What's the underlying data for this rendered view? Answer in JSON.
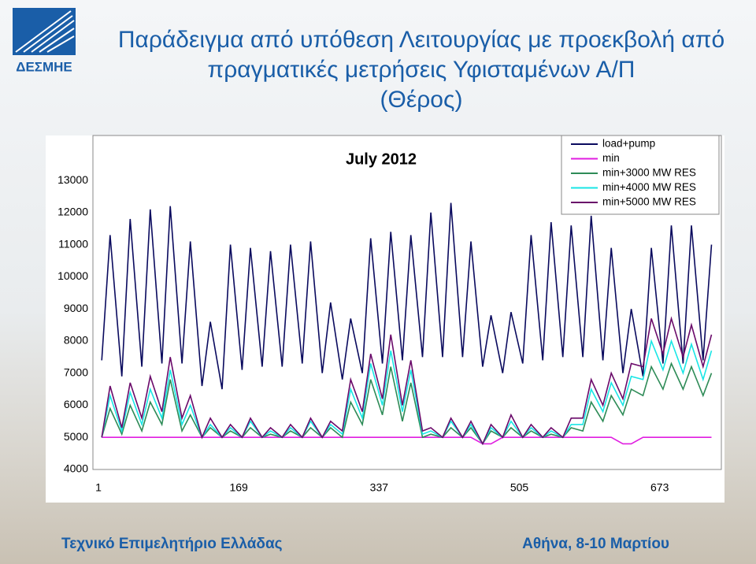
{
  "header": {
    "logo_text": "ΔΕΣΜΗΕ",
    "title_lines": [
      "Παράδειγμα από υπόθεση Λειτουργίας με προεκβολή από",
      "πραγματικές μετρήσεις Υφισταμένων Α/Π",
      "(Θέρος)"
    ]
  },
  "chart_data": {
    "type": "line",
    "title": "July 2012",
    "x": [
      5,
      15,
      29,
      39,
      53,
      63,
      77,
      87,
      101,
      111,
      125,
      135,
      149,
      159,
      173,
      183,
      197,
      207,
      221,
      231,
      245,
      255,
      269,
      279,
      293,
      303,
      317,
      327,
      341,
      351,
      365,
      375,
      389,
      399,
      413,
      423,
      437,
      447,
      461,
      471,
      485,
      495,
      509,
      519,
      533,
      543,
      557,
      567,
      581,
      591,
      605,
      615,
      629,
      639,
      653,
      663,
      677,
      687,
      701,
      711,
      725,
      735
    ],
    "xlim": [
      1,
      744
    ],
    "xticks": [
      1,
      169,
      337,
      505,
      673
    ],
    "ylim": [
      4000,
      14400
    ],
    "yticks": [
      4000,
      5000,
      6000,
      7000,
      8000,
      9000,
      10000,
      11000,
      12000,
      13000
    ],
    "grid": false,
    "legend": "top-right",
    "series": [
      {
        "name": "load+pump",
        "color": "#0a0a5e",
        "values": [
          7400,
          11300,
          6900,
          11800,
          7200,
          12100,
          7300,
          12200,
          7300,
          11100,
          6600,
          8600,
          6500,
          11000,
          7100,
          10900,
          7200,
          10800,
          7200,
          11000,
          7300,
          11100,
          7000,
          9200,
          6800,
          8700,
          7000,
          11200,
          7300,
          11400,
          7400,
          11300,
          7500,
          12000,
          7500,
          12300,
          7500,
          11100,
          7200,
          8800,
          7000,
          8900,
          7300,
          11300,
          7400,
          11700,
          7500,
          11600,
          7500,
          11900,
          7400,
          10900,
          7000,
          9000,
          6900,
          10900,
          7300,
          11600,
          7300,
          11600,
          7400,
          11000
        ]
      },
      {
        "name": "min",
        "color": "#e01ee0",
        "values": [
          5000,
          5000,
          5000,
          5000,
          5000,
          5000,
          5000,
          5000,
          5000,
          5000,
          5000,
          5000,
          5000,
          5000,
          5000,
          5000,
          5000,
          5000,
          5000,
          5000,
          5000,
          5000,
          5000,
          5000,
          5000,
          5000,
          5000,
          5000,
          5000,
          5000,
          5000,
          5000,
          5000,
          5000,
          5000,
          5000,
          5000,
          5000,
          4800,
          4800,
          5000,
          5000,
          5000,
          5000,
          5000,
          5000,
          5000,
          5000,
          5000,
          5000,
          5000,
          5000,
          4800,
          4800,
          5000,
          5000,
          5000,
          5000,
          5000,
          5000,
          5000,
          5000
        ]
      },
      {
        "name": "min+3000 MW RES",
        "color": "#2e8b57",
        "values": [
          5000,
          5900,
          5100,
          6000,
          5200,
          6100,
          5400,
          6800,
          5200,
          5700,
          5000,
          5300,
          5000,
          5200,
          5000,
          5300,
          5000,
          5100,
          5000,
          5200,
          5000,
          5300,
          5000,
          5300,
          5000,
          6100,
          5400,
          6800,
          5700,
          7200,
          5500,
          6700,
          5000,
          5100,
          5000,
          5300,
          5000,
          5300,
          4800,
          5200,
          5000,
          5300,
          5000,
          5200,
          5000,
          5100,
          5000,
          5300,
          5200,
          6100,
          5500,
          6300,
          5700,
          6500,
          6300,
          7200,
          6500,
          7300,
          6500,
          7200,
          6300,
          7000
        ]
      },
      {
        "name": "min+4000 MW RES",
        "color": "#19e6e6",
        "values": [
          5000,
          6300,
          5200,
          6400,
          5400,
          6500,
          5600,
          7100,
          5400,
          6000,
          5000,
          5400,
          5000,
          5300,
          5000,
          5500,
          5000,
          5200,
          5000,
          5300,
          5000,
          5500,
          5000,
          5400,
          5100,
          6500,
          5600,
          7300,
          6000,
          7700,
          5800,
          7100,
          5100,
          5200,
          5000,
          5500,
          5000,
          5400,
          4800,
          5300,
          5000,
          5500,
          5000,
          5300,
          5000,
          5200,
          5000,
          5400,
          5400,
          6500,
          5800,
          6700,
          6000,
          6900,
          6800,
          8000,
          7100,
          8000,
          7000,
          7900,
          6800,
          7700
        ]
      },
      {
        "name": "min+5000 MW RES",
        "color": "#6a0a6a",
        "values": [
          5000,
          6600,
          5300,
          6700,
          5600,
          6900,
          5800,
          7500,
          5600,
          6300,
          5000,
          5600,
          5000,
          5400,
          5000,
          5600,
          5000,
          5300,
          5000,
          5400,
          5000,
          5600,
          5000,
          5500,
          5200,
          6800,
          5800,
          7600,
          6200,
          8200,
          6000,
          7400,
          5200,
          5300,
          5000,
          5600,
          5000,
          5500,
          4800,
          5400,
          5000,
          5700,
          5000,
          5400,
          5000,
          5300,
          5000,
          5600,
          5600,
          6800,
          6000,
          7000,
          6200,
          7300,
          7200,
          8700,
          7600,
          8700,
          7500,
          8500,
          7200,
          8200
        ]
      }
    ]
  },
  "footer": {
    "left": "Τεχνικό Επιμελητήριο Ελλάδας",
    "right": "Αθήνα, 8-10 Μαρτίου"
  }
}
